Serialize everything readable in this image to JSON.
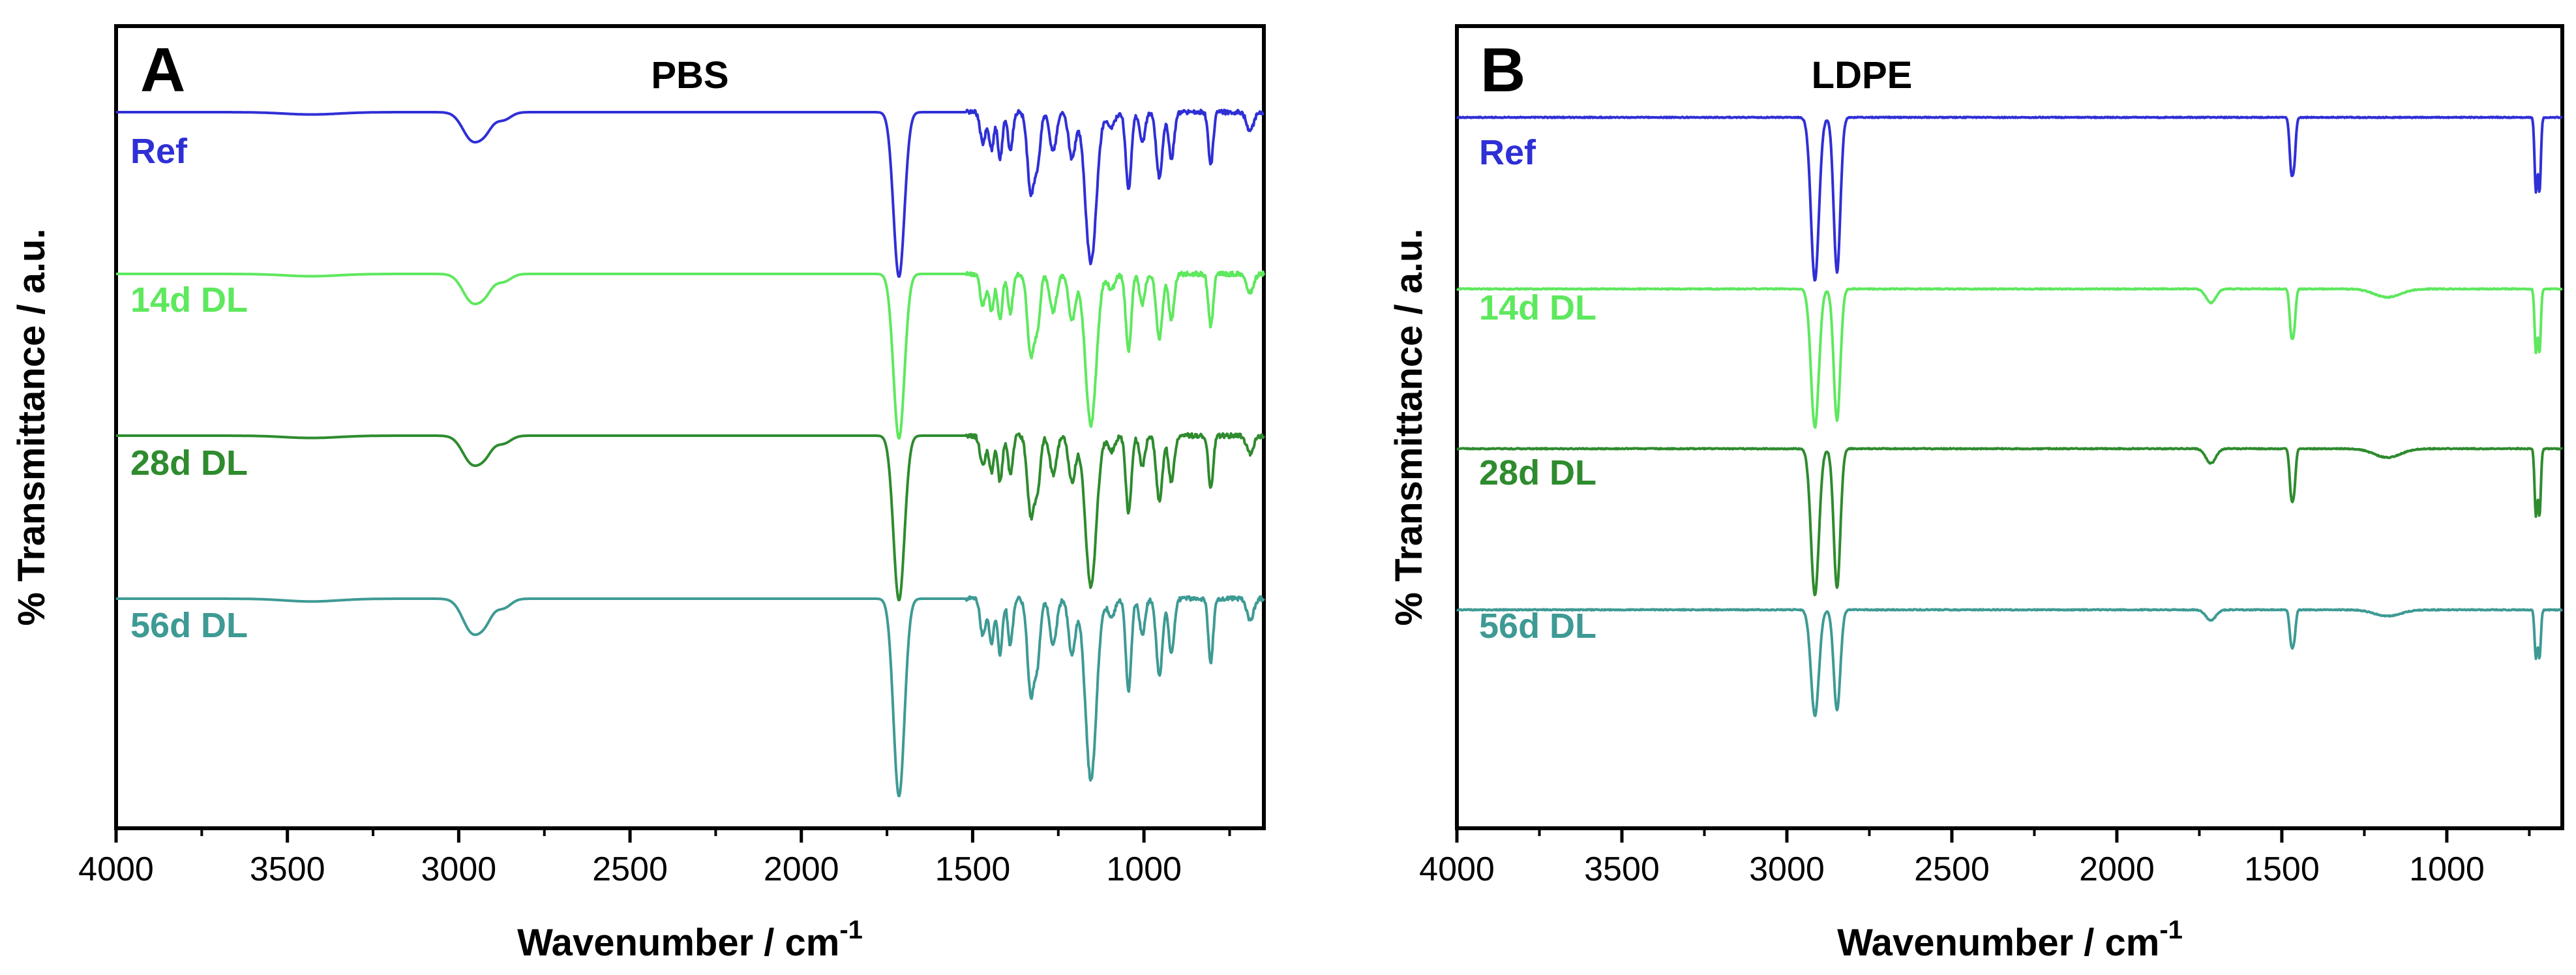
{
  "chart_data": [
    {
      "type": "line",
      "panel_letter": "A",
      "title": "PBS",
      "xlabel": "Wavenumber / cm",
      "xlabel_superscript": "-1",
      "ylabel": "% Transmittance / a.u.",
      "xlim": [
        4000,
        650
      ],
      "x_ticks": [
        4000,
        3500,
        3000,
        2500,
        2000,
        1500,
        1000
      ],
      "y_ticks_shown": false,
      "legend_placement": "inline-left",
      "series": [
        {
          "name": "Ref",
          "color": "#2f2fd6",
          "baseline": 0.0,
          "scale": 1.0
        },
        {
          "name": "14d DL",
          "color": "#5ee85e",
          "baseline": -1.0,
          "scale": 1.0
        },
        {
          "name": "28d DL",
          "color": "#2e8b2e",
          "baseline": -2.0,
          "scale": 1.0
        },
        {
          "name": "56d DL",
          "color": "#3e9a94",
          "baseline": -3.0,
          "scale": 1.2
        }
      ],
      "peaks": [
        {
          "x": 3430,
          "depth": 0.015,
          "width": 80
        },
        {
          "x": 2960,
          "depth": 0.18,
          "width": 28
        },
        {
          "x": 2920,
          "depth": 0.08,
          "width": 20
        },
        {
          "x": 2870,
          "depth": 0.05,
          "width": 22
        },
        {
          "x": 1715,
          "depth": 1.07,
          "width": 16
        },
        {
          "x": 1470,
          "depth": 0.2,
          "width": 8
        },
        {
          "x": 1445,
          "depth": 0.24,
          "width": 7
        },
        {
          "x": 1420,
          "depth": 0.3,
          "width": 7
        },
        {
          "x": 1390,
          "depth": 0.25,
          "width": 7
        },
        {
          "x": 1330,
          "depth": 0.52,
          "width": 10
        },
        {
          "x": 1310,
          "depth": 0.3,
          "width": 8
        },
        {
          "x": 1265,
          "depth": 0.25,
          "width": 10
        },
        {
          "x": 1210,
          "depth": 0.3,
          "width": 10
        },
        {
          "x": 1155,
          "depth": 0.98,
          "width": 16
        },
        {
          "x": 1095,
          "depth": 0.1,
          "width": 10
        },
        {
          "x": 1045,
          "depth": 0.5,
          "width": 8
        },
        {
          "x": 1005,
          "depth": 0.2,
          "width": 8
        },
        {
          "x": 955,
          "depth": 0.42,
          "width": 9
        },
        {
          "x": 920,
          "depth": 0.3,
          "width": 8
        },
        {
          "x": 805,
          "depth": 0.34,
          "width": 7
        },
        {
          "x": 690,
          "depth": 0.12,
          "width": 10
        }
      ]
    },
    {
      "type": "line",
      "panel_letter": "B",
      "title": "LDPE",
      "xlabel": "Wavenumber / cm",
      "xlabel_superscript": "-1",
      "ylabel": "% Transmittance / a.u.",
      "xlim": [
        4000,
        650
      ],
      "x_ticks": [
        4000,
        3500,
        3000,
        2500,
        2000,
        1500,
        1000
      ],
      "y_ticks_shown": false,
      "legend_placement": "inline-left",
      "series": [
        {
          "name": "Ref",
          "color": "#2f2fd6",
          "baseline": 0.0,
          "scale": 1.0
        },
        {
          "name": "14d DL",
          "color": "#5ee85e",
          "baseline": -1.0,
          "scale": 0.85
        },
        {
          "name": "28d DL",
          "color": "#2e8b2e",
          "baseline": -2.0,
          "scale": 0.9
        },
        {
          "name": "56d DL",
          "color": "#3e9a94",
          "baseline": -3.0,
          "scale": 0.65
        }
      ],
      "peaks": [
        {
          "x": 2915,
          "depth": 1.0,
          "width": 12
        },
        {
          "x": 2848,
          "depth": 0.95,
          "width": 10
        },
        {
          "x": 1715,
          "depth": 0.1,
          "width": 15,
          "ref": false
        },
        {
          "x": 1472,
          "depth": 0.28,
          "width": 5
        },
        {
          "x": 1463,
          "depth": 0.26,
          "width": 5
        },
        {
          "x": 1180,
          "depth": 0.06,
          "width": 40,
          "ref": false
        },
        {
          "x": 730,
          "depth": 0.45,
          "width": 4
        },
        {
          "x": 719,
          "depth": 0.45,
          "width": 4
        }
      ]
    }
  ]
}
